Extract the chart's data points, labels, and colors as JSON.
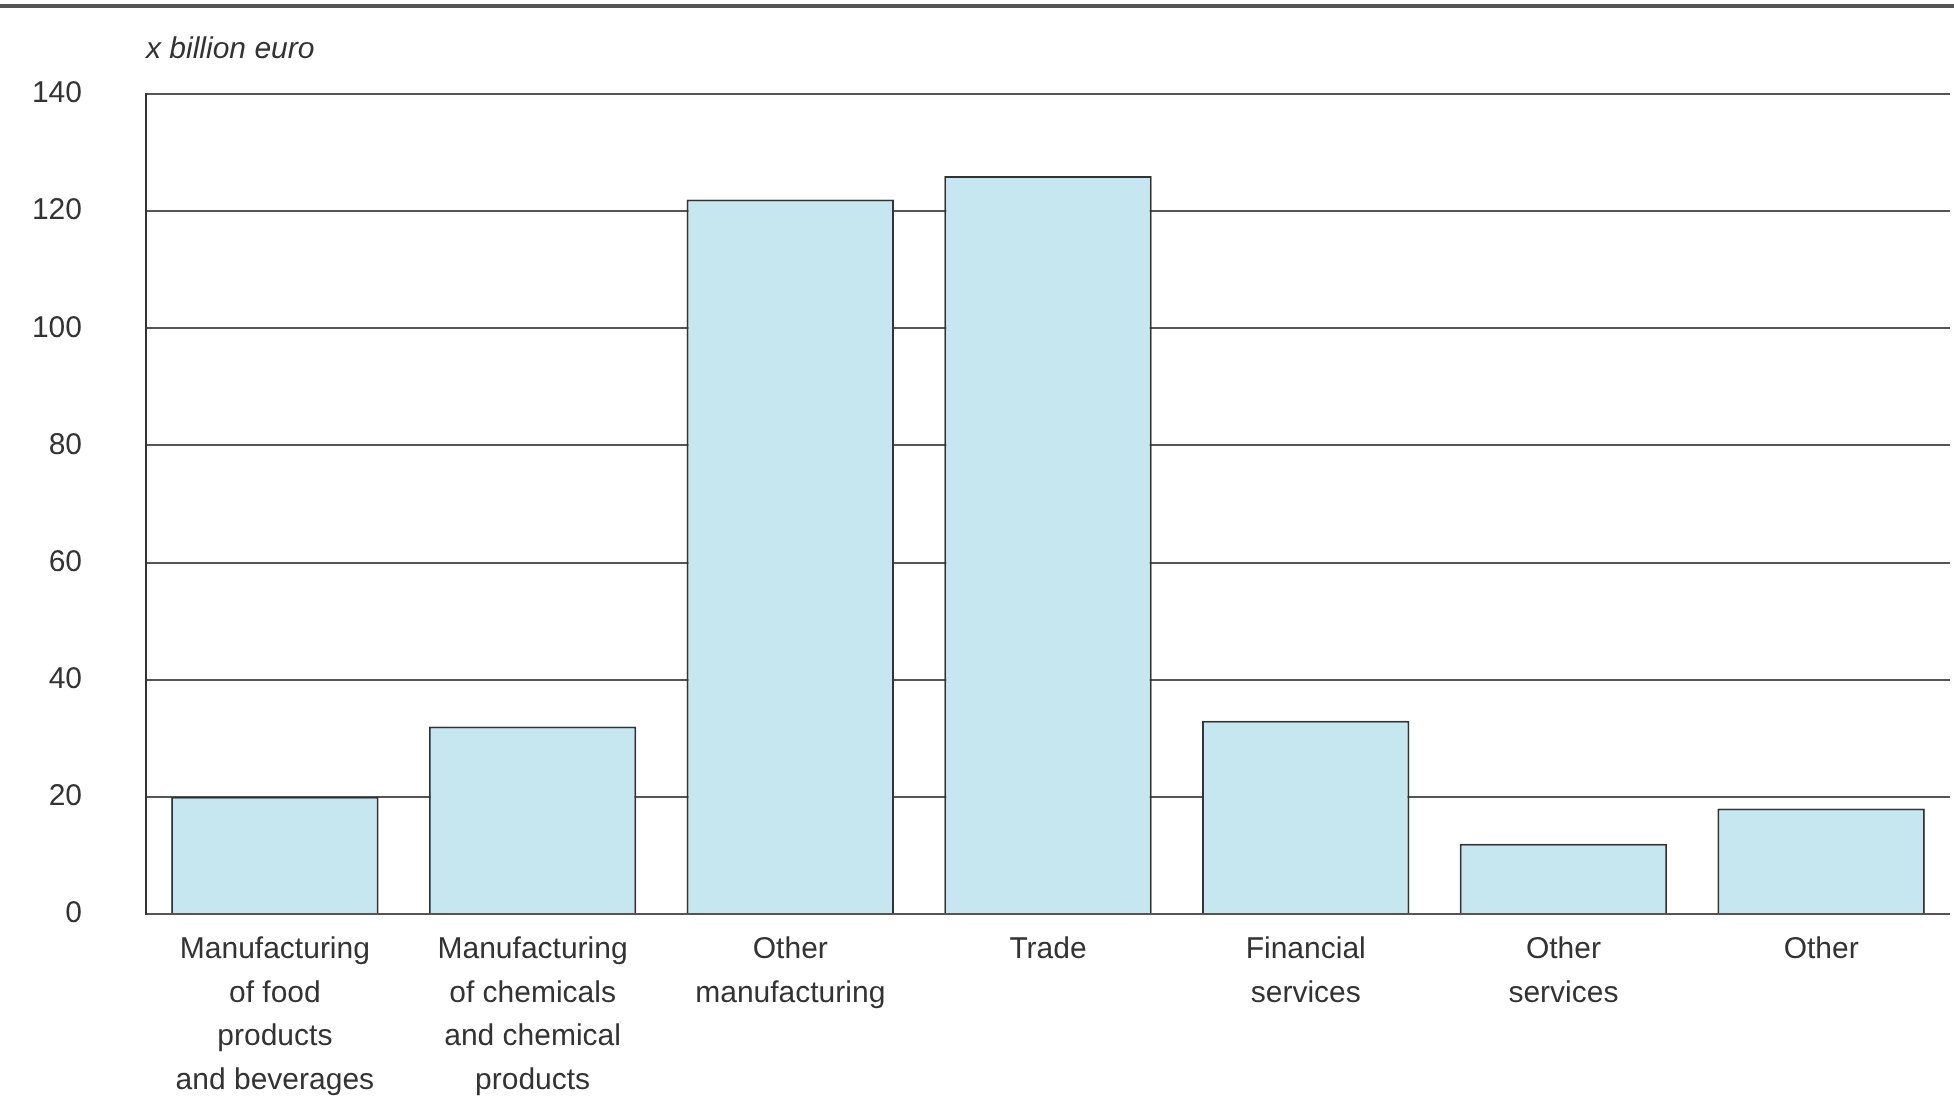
{
  "chart_data": {
    "type": "bar",
    "ylabel": "x billion euro",
    "categories": [
      "Manufacturing\nof food\nproducts\nand beverages",
      "Manufacturing\nof chemicals\nand chemical\nproducts",
      "Other\nmanufacturing",
      "Trade",
      "Financial\nservices",
      "Other\nservices",
      "Other"
    ],
    "values": [
      20,
      32,
      122,
      126,
      33,
      12,
      18
    ],
    "color": "#c6e7ef",
    "ylim": [
      0,
      140
    ],
    "yticks": [
      0,
      20,
      40,
      60,
      80,
      100,
      120,
      140
    ],
    "grid": "y"
  }
}
